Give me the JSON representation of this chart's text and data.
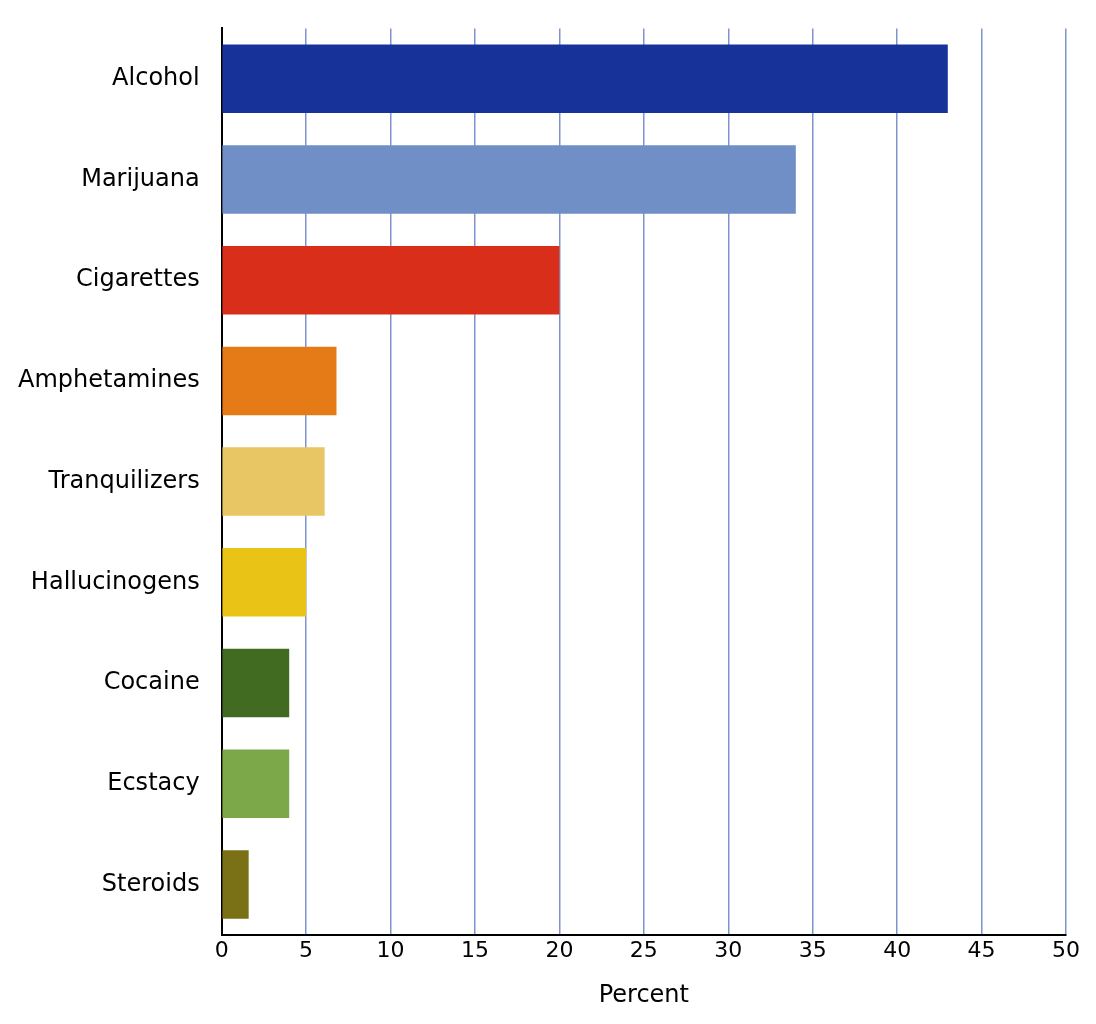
{
  "chart_data": {
    "type": "bar",
    "orientation": "horizontal",
    "xlabel": "Percent",
    "categories": [
      "Alcohol",
      "Marijuana",
      "Cigarettes",
      "Amphetamines",
      "Tranquilizers",
      "Hallucinogens",
      "Cocaine",
      "Ecstacy",
      "Steroids"
    ],
    "values": [
      43,
      34,
      20,
      6.8,
      6.1,
      5,
      4,
      4,
      1.6
    ],
    "colors": [
      "#17339a",
      "#6f8fc6",
      "#d92f1a",
      "#e57b17",
      "#e8c664",
      "#e9c416",
      "#416b20",
      "#7da84a",
      "#7a7116"
    ],
    "xlim": [
      0,
      50
    ],
    "xticks": [
      0,
      5,
      10,
      15,
      20,
      25,
      30,
      35,
      40,
      45,
      50
    ],
    "grid": "x",
    "legend": false
  }
}
